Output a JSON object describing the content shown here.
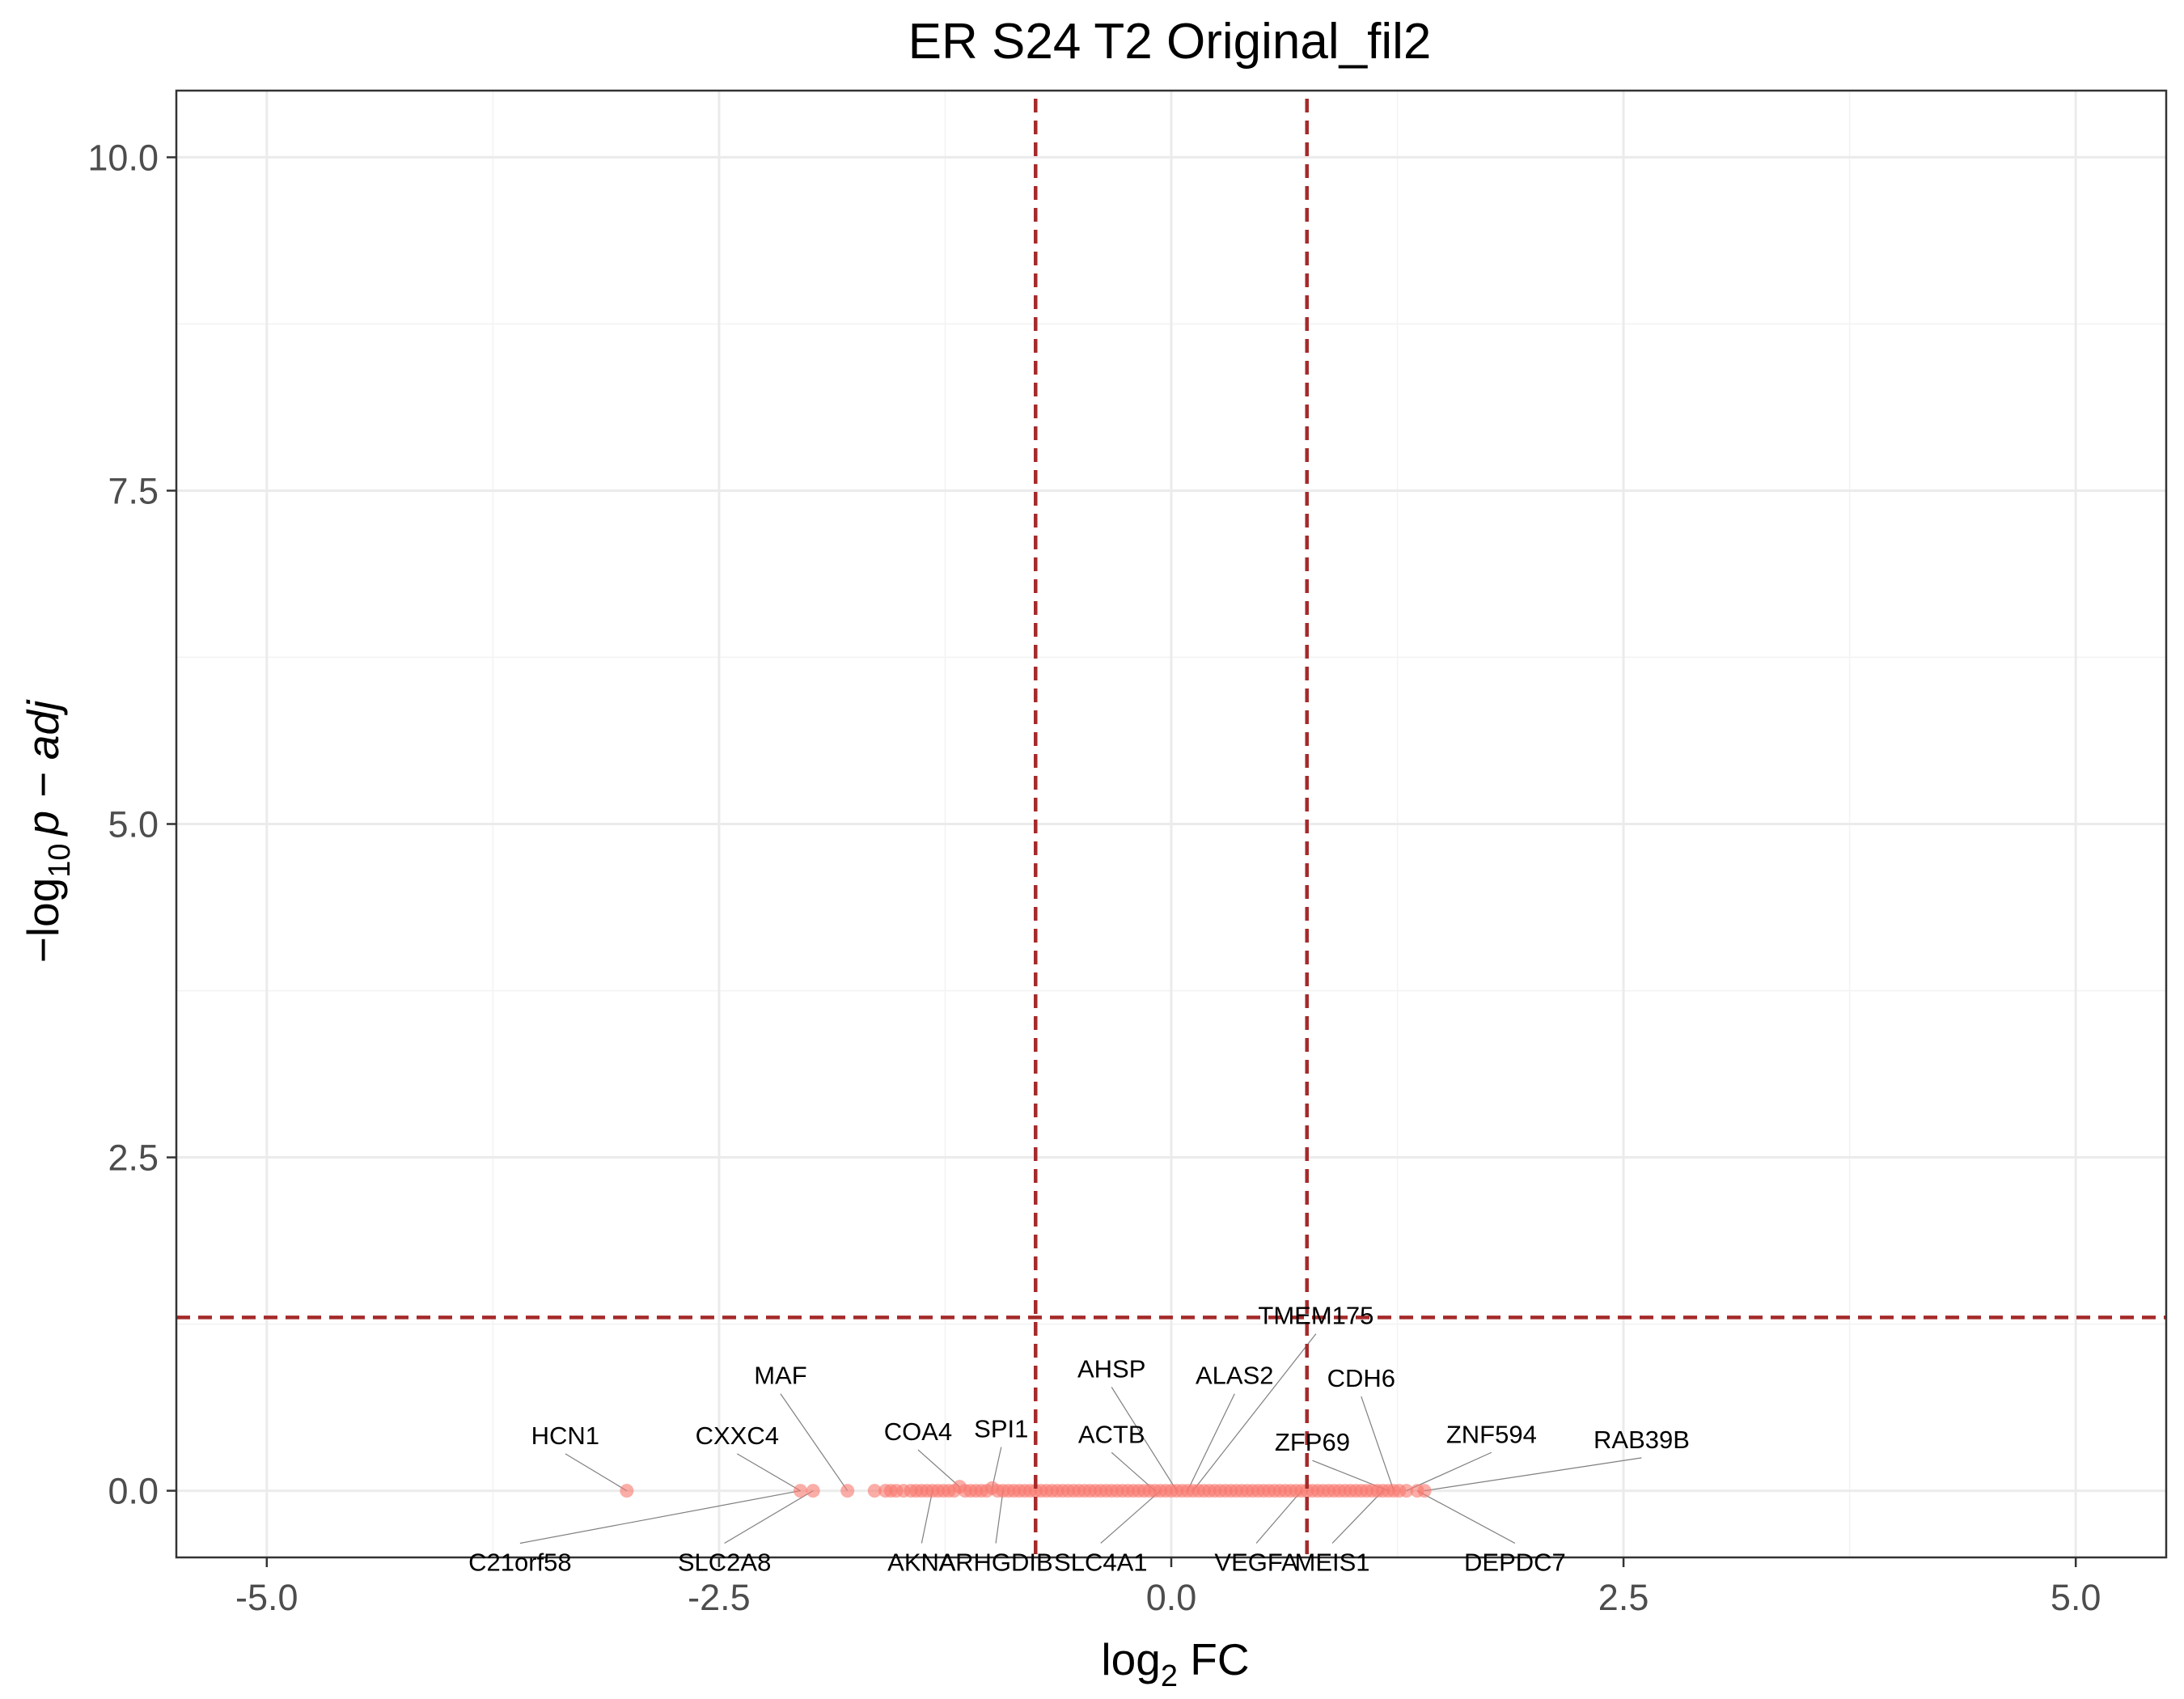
{
  "chart_data": {
    "type": "scatter",
    "title": "ER S24 T2 Original_fil2",
    "xlabel": "log",
    "xlabel_sub": "2",
    "xlabel_rest": " FC",
    "ylabel": "−log",
    "ylabel_sub": "10",
    "ylabel_rest": "p − adj",
    "xlim": [
      -5.5,
      5.5
    ],
    "ylim": [
      -0.5,
      10.5
    ],
    "x_ticks": [
      -5.0,
      -2.5,
      0.0,
      2.5,
      5.0
    ],
    "x_tick_labels": [
      "-5.0",
      "-2.5",
      "0.0",
      "2.5",
      "5.0"
    ],
    "y_ticks": [
      0.0,
      2.5,
      5.0,
      7.5,
      10.0
    ],
    "y_tick_labels": [
      "0.0",
      "2.5",
      "5.0",
      "7.5",
      "10.0"
    ],
    "grid": true,
    "point_color": "#f8766d",
    "threshold_color": "#a52a2a",
    "thresholds": {
      "x": [
        -0.75,
        0.75
      ],
      "y": 1.3
    },
    "points": [
      [
        -3.01,
        0.0
      ],
      [
        -2.05,
        0.0
      ],
      [
        -1.98,
        0.0
      ],
      [
        -1.79,
        0.0
      ],
      [
        -1.64,
        0.0
      ],
      [
        -1.58,
        0.0
      ],
      [
        -1.55,
        0.0
      ],
      [
        -1.52,
        0.0
      ],
      [
        -1.48,
        0.0
      ],
      [
        -1.44,
        0.0
      ],
      [
        -1.41,
        0.0
      ],
      [
        -1.38,
        0.0
      ],
      [
        -1.35,
        0.0
      ],
      [
        -1.32,
        0.0
      ],
      [
        -1.29,
        0.0
      ],
      [
        -1.26,
        0.0
      ],
      [
        -1.23,
        0.0
      ],
      [
        -1.2,
        0.0
      ],
      [
        -1.17,
        0.03
      ],
      [
        -1.14,
        0.0
      ],
      [
        -1.11,
        0.0
      ],
      [
        -1.08,
        0.0
      ],
      [
        -1.05,
        0.0
      ],
      [
        -1.02,
        0.0
      ],
      [
        -0.99,
        0.02
      ],
      [
        -0.96,
        0.0
      ],
      [
        -0.93,
        0.0
      ],
      [
        -0.9,
        0.0
      ],
      [
        -0.87,
        0.0
      ],
      [
        -0.84,
        0.0
      ],
      [
        -0.81,
        0.0
      ],
      [
        -0.78,
        0.0
      ],
      [
        -0.75,
        0.0
      ],
      [
        -0.72,
        0.0
      ],
      [
        -0.69,
        0.0
      ],
      [
        -0.66,
        0.0
      ],
      [
        -0.63,
        0.0
      ],
      [
        -0.6,
        0.0
      ],
      [
        -0.57,
        0.0
      ],
      [
        -0.54,
        0.0
      ],
      [
        -0.51,
        0.0
      ],
      [
        -0.48,
        0.0
      ],
      [
        -0.45,
        0.0
      ],
      [
        -0.42,
        0.0
      ],
      [
        -0.39,
        0.0
      ],
      [
        -0.36,
        0.0
      ],
      [
        -0.33,
        0.0
      ],
      [
        -0.3,
        0.0
      ],
      [
        -0.27,
        0.0
      ],
      [
        -0.24,
        0.0
      ],
      [
        -0.21,
        0.0
      ],
      [
        -0.18,
        0.0
      ],
      [
        -0.15,
        0.0
      ],
      [
        -0.12,
        0.0
      ],
      [
        -0.09,
        0.0
      ],
      [
        -0.06,
        0.0
      ],
      [
        -0.03,
        0.0
      ],
      [
        0.0,
        0.0
      ],
      [
        0.03,
        0.0
      ],
      [
        0.06,
        0.0
      ],
      [
        0.09,
        0.0
      ],
      [
        0.12,
        0.0
      ],
      [
        0.15,
        0.0
      ],
      [
        0.18,
        0.0
      ],
      [
        0.21,
        0.0
      ],
      [
        0.24,
        0.0
      ],
      [
        0.27,
        0.0
      ],
      [
        0.3,
        0.0
      ],
      [
        0.33,
        0.0
      ],
      [
        0.36,
        0.0
      ],
      [
        0.39,
        0.0
      ],
      [
        0.42,
        0.0
      ],
      [
        0.45,
        0.0
      ],
      [
        0.48,
        0.0
      ],
      [
        0.51,
        0.0
      ],
      [
        0.54,
        0.0
      ],
      [
        0.57,
        0.0
      ],
      [
        0.6,
        0.0
      ],
      [
        0.63,
        0.0
      ],
      [
        0.66,
        0.0
      ],
      [
        0.69,
        0.0
      ],
      [
        0.72,
        0.0
      ],
      [
        0.75,
        0.0
      ],
      [
        0.78,
        0.0
      ],
      [
        0.81,
        0.0
      ],
      [
        0.84,
        0.0
      ],
      [
        0.87,
        0.0
      ],
      [
        0.9,
        0.0
      ],
      [
        0.93,
        0.0
      ],
      [
        0.96,
        0.0
      ],
      [
        0.99,
        0.0
      ],
      [
        1.02,
        0.0
      ],
      [
        1.05,
        0.0
      ],
      [
        1.08,
        0.0
      ],
      [
        1.11,
        0.0
      ],
      [
        1.14,
        0.0
      ],
      [
        1.17,
        0.0
      ],
      [
        1.2,
        0.0
      ],
      [
        1.23,
        0.0
      ],
      [
        1.26,
        0.0
      ],
      [
        1.3,
        0.0
      ],
      [
        1.36,
        0.0
      ],
      [
        1.4,
        0.0
      ]
    ],
    "labels": [
      {
        "text": "HCN1",
        "x": -3.01,
        "y": 0.0,
        "lx": -3.35,
        "ly": 0.35,
        "anchor": "middle"
      },
      {
        "text": "C21orf58",
        "x": -2.05,
        "y": 0.0,
        "lx": -3.6,
        "ly": -0.6,
        "anchor": "middle"
      },
      {
        "text": "CXXC4",
        "x": -2.05,
        "y": 0.0,
        "lx": -2.4,
        "ly": 0.35,
        "anchor": "middle"
      },
      {
        "text": "SLC2A8",
        "x": -1.98,
        "y": 0.0,
        "lx": -2.47,
        "ly": -0.6,
        "anchor": "middle"
      },
      {
        "text": "MAF",
        "x": -1.79,
        "y": 0.0,
        "lx": -2.16,
        "ly": 0.8,
        "anchor": "middle"
      },
      {
        "text": "COA4",
        "x": -1.17,
        "y": 0.03,
        "lx": -1.4,
        "ly": 0.38,
        "anchor": "middle"
      },
      {
        "text": "AKNA",
        "x": -1.32,
        "y": 0.0,
        "lx": -1.38,
        "ly": -0.6,
        "anchor": "middle"
      },
      {
        "text": "SPI1",
        "x": -0.99,
        "y": 0.02,
        "lx": -0.94,
        "ly": 0.4,
        "anchor": "middle"
      },
      {
        "text": "ARHGDIB",
        "x": -0.93,
        "y": 0.0,
        "lx": -0.97,
        "ly": -0.6,
        "anchor": "middle"
      },
      {
        "text": "SLC4A1",
        "x": -0.06,
        "y": 0.0,
        "lx": -0.39,
        "ly": -0.6,
        "anchor": "middle"
      },
      {
        "text": "ACTB",
        "x": -0.09,
        "y": 0.0,
        "lx": -0.33,
        "ly": 0.36,
        "anchor": "middle"
      },
      {
        "text": "AHSP",
        "x": 0.03,
        "y": 0.0,
        "lx": -0.33,
        "ly": 0.85,
        "anchor": "middle"
      },
      {
        "text": "ALAS2",
        "x": 0.09,
        "y": 0.0,
        "lx": 0.35,
        "ly": 0.8,
        "anchor": "middle"
      },
      {
        "text": "TMEM175",
        "x": 0.12,
        "y": 0.0,
        "lx": 0.8,
        "ly": 1.25,
        "anchor": "middle"
      },
      {
        "text": "VEGFA",
        "x": 0.72,
        "y": 0.0,
        "lx": 0.47,
        "ly": -0.6,
        "anchor": "middle"
      },
      {
        "text": "ZFP69",
        "x": 1.2,
        "y": 0.0,
        "lx": 0.78,
        "ly": 0.3,
        "anchor": "middle"
      },
      {
        "text": "MEIS1",
        "x": 1.17,
        "y": 0.0,
        "lx": 0.89,
        "ly": -0.6,
        "anchor": "middle"
      },
      {
        "text": "CDH6",
        "x": 1.23,
        "y": 0.0,
        "lx": 1.05,
        "ly": 0.78,
        "anchor": "middle"
      },
      {
        "text": "ZNF594",
        "x": 1.3,
        "y": 0.0,
        "lx": 1.77,
        "ly": 0.36,
        "anchor": "middle"
      },
      {
        "text": "RAB39B",
        "x": 1.4,
        "y": 0.0,
        "lx": 2.6,
        "ly": 0.32,
        "anchor": "middle"
      },
      {
        "text": "DEPDC7",
        "x": 1.36,
        "y": 0.0,
        "lx": 1.9,
        "ly": -0.6,
        "anchor": "middle"
      }
    ]
  }
}
